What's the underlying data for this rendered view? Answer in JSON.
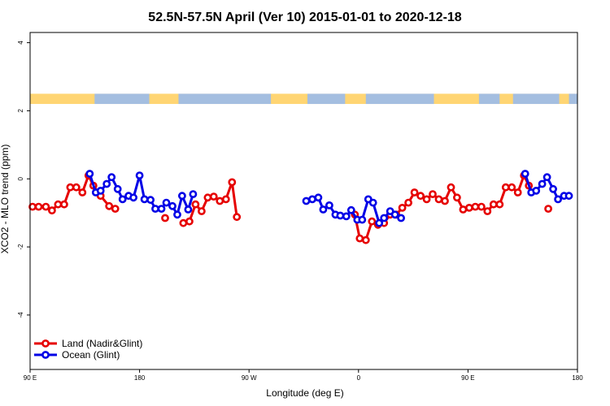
{
  "chart_data": {
    "type": "line",
    "title": "52.5N-57.5N April (Ver 10)   2015-01-01 to 2020-12-18",
    "xlabel": "Longitude (deg E)",
    "ylabel": "XCO2 - MLO trend (ppm)",
    "xlim": [
      90,
      540
    ],
    "ylim": [
      -5.6,
      4.3
    ],
    "x_ticks": [
      {
        "value": 90,
        "label": "90 E"
      },
      {
        "value": 180,
        "label": "180"
      },
      {
        "value": 270,
        "label": "90 W"
      },
      {
        "value": 360,
        "label": "0"
      },
      {
        "value": 450,
        "label": "90 E"
      },
      {
        "value": 540,
        "label": "180"
      }
    ],
    "y_ticks": [
      {
        "value": 4,
        "label": "4"
      },
      {
        "value": 2,
        "label": "2"
      },
      {
        "value": 0,
        "label": "0"
      },
      {
        "value": -2,
        "label": "-2"
      },
      {
        "value": -4,
        "label": "-4"
      }
    ],
    "land_strip": {
      "y_low": 2.2,
      "y_high": 2.5,
      "land_color": "#FFD573",
      "ocean_color": "#A4BEE0"
    },
    "legend_position": "bottom-left",
    "grid": false,
    "series": [
      {
        "name": "Land (Nadir&Glint)",
        "color": "#E60000",
        "segments": [
          [
            [
              92,
              -0.82
            ],
            [
              97,
              -0.82
            ],
            [
              103,
              -0.82
            ],
            [
              108,
              -0.93
            ],
            [
              113,
              -0.75
            ],
            [
              118,
              -0.75
            ],
            [
              123,
              -0.25
            ],
            [
              128,
              -0.25
            ],
            [
              133,
              -0.4
            ],
            [
              138,
              0.1
            ],
            [
              142,
              -0.2
            ],
            [
              148,
              -0.5
            ],
            [
              155,
              -0.8
            ],
            [
              160,
              -0.88
            ]
          ],
          [
            [
              201,
              -1.15
            ]
          ],
          [
            [
              216,
              -1.3
            ],
            [
              221,
              -1.25
            ],
            [
              226,
              -0.75
            ],
            [
              231,
              -0.95
            ],
            [
              236,
              -0.55
            ],
            [
              241,
              -0.52
            ],
            [
              246,
              -0.65
            ],
            [
              251,
              -0.6
            ],
            [
              256,
              -0.1
            ],
            [
              260,
              -1.12
            ]
          ],
          [
            [
              357,
              -1.05
            ],
            [
              361,
              -1.75
            ],
            [
              366,
              -1.8
            ],
            [
              371,
              -1.25
            ],
            [
              376,
              -1.35
            ],
            [
              381,
              -1.3
            ],
            [
              386,
              -1.05
            ],
            [
              391,
              -1.05
            ],
            [
              396,
              -0.85
            ],
            [
              401,
              -0.7
            ],
            [
              406,
              -0.4
            ],
            [
              411,
              -0.5
            ],
            [
              416,
              -0.6
            ],
            [
              421,
              -0.45
            ],
            [
              426,
              -0.6
            ],
            [
              431,
              -0.65
            ],
            [
              436,
              -0.25
            ],
            [
              441,
              -0.55
            ],
            [
              446,
              -0.9
            ],
            [
              451,
              -0.85
            ],
            [
              456,
              -0.82
            ],
            [
              461,
              -0.82
            ],
            [
              466,
              -0.95
            ],
            [
              471,
              -0.75
            ],
            [
              476,
              -0.75
            ],
            [
              481,
              -0.25
            ],
            [
              486,
              -0.25
            ],
            [
              491,
              -0.4
            ],
            [
              496,
              0.1
            ],
            [
              500,
              -0.2
            ]
          ],
          [
            [
              516,
              -0.88
            ]
          ]
        ]
      },
      {
        "name": "Ocean (Glint)",
        "color": "#0000E6",
        "segments": [
          [
            [
              139,
              0.15
            ],
            [
              144,
              -0.4
            ],
            [
              148,
              -0.35
            ],
            [
              153,
              -0.15
            ],
            [
              157,
              0.05
            ],
            [
              162,
              -0.3
            ],
            [
              166,
              -0.6
            ],
            [
              171,
              -0.5
            ],
            [
              175,
              -0.55
            ],
            [
              180,
              0.1
            ],
            [
              184,
              -0.6
            ],
            [
              189,
              -0.62
            ],
            [
              193,
              -0.88
            ],
            [
              198,
              -0.88
            ],
            [
              202,
              -0.7
            ],
            [
              207,
              -0.8
            ],
            [
              211,
              -1.05
            ],
            [
              215,
              -0.5
            ],
            [
              220,
              -0.9
            ],
            [
              224,
              -0.45
            ]
          ],
          [
            [
              317,
              -0.65
            ],
            [
              322,
              -0.6
            ],
            [
              327,
              -0.55
            ],
            [
              331,
              -0.9
            ],
            [
              336,
              -0.78
            ],
            [
              341,
              -1.05
            ],
            [
              345,
              -1.08
            ],
            [
              350,
              -1.1
            ],
            [
              354,
              -0.92
            ],
            [
              359,
              -1.2
            ],
            [
              363,
              -1.2
            ],
            [
              368,
              -0.6
            ],
            [
              372,
              -0.7
            ],
            [
              377,
              -1.3
            ],
            [
              381,
              -1.15
            ],
            [
              386,
              -0.95
            ],
            [
              390,
              -1.05
            ],
            [
              395,
              -1.15
            ]
          ],
          [
            [
              497,
              0.15
            ],
            [
              502,
              -0.4
            ],
            [
              506,
              -0.35
            ],
            [
              511,
              -0.15
            ],
            [
              515,
              0.05
            ],
            [
              520,
              -0.3
            ],
            [
              524,
              -0.6
            ],
            [
              529,
              -0.5
            ],
            [
              533,
              -0.5
            ]
          ]
        ]
      }
    ]
  }
}
